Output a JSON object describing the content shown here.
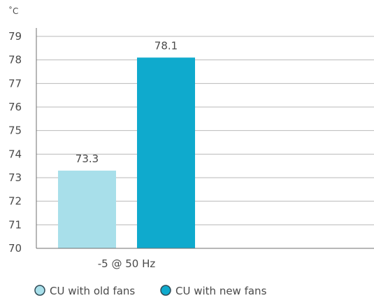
{
  "chart_data": {
    "type": "bar",
    "title": "",
    "xlabel": "",
    "ylabel": "˚C",
    "categories": [
      "-5 @ 50 Hz"
    ],
    "series": [
      {
        "name": "CU with old fans",
        "values": [
          73.3
        ],
        "color": "#a8dfea"
      },
      {
        "name": "CU with new fans",
        "values": [
          78.1
        ],
        "color": "#0faacd"
      }
    ],
    "ylim": [
      70,
      79
    ],
    "yticks": [
      70,
      71,
      72,
      73,
      74,
      75,
      76,
      77,
      78,
      79
    ],
    "grid": true,
    "legend": "bottom",
    "data_labels": [
      "73.3",
      "78.1"
    ]
  }
}
